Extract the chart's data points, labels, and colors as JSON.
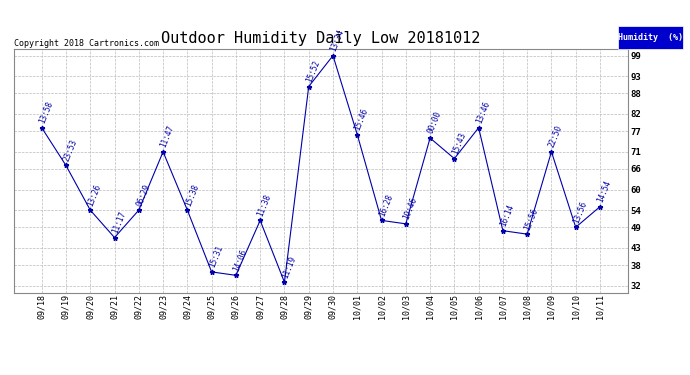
{
  "title": "Outdoor Humidity Daily Low 20181012",
  "copyright": "Copyright 2018 Cartronics.com",
  "legend_label": "Humidity  (%)",
  "x_labels": [
    "09/18",
    "09/19",
    "09/20",
    "09/21",
    "09/22",
    "09/23",
    "09/24",
    "09/25",
    "09/26",
    "09/27",
    "09/28",
    "09/29",
    "09/30",
    "10/01",
    "10/02",
    "10/03",
    "10/04",
    "10/05",
    "10/06",
    "10/07",
    "10/08",
    "10/09",
    "10/10",
    "10/11"
  ],
  "y_values": [
    78,
    67,
    54,
    46,
    54,
    71,
    54,
    36,
    35,
    51,
    33,
    90,
    99,
    76,
    51,
    50,
    75,
    69,
    78,
    48,
    47,
    71,
    49,
    55
  ],
  "point_labels": [
    "13:58",
    "23:53",
    "13:26",
    "11:17",
    "06:29",
    "11:47",
    "15:38",
    "15:31",
    "14:06",
    "11:38",
    "11:19",
    "15:52",
    "13:34",
    "15:46",
    "16:28",
    "10:46",
    "00:00",
    "15:43",
    "13:46",
    "16:14",
    "15:56",
    "22:50",
    "13:56",
    "14:54"
  ],
  "line_color": "#0000aa",
  "marker": "*",
  "bg_color": "#ffffff",
  "plot_bg_color": "#ffffff",
  "grid_color": "#bbbbbb",
  "yticks": [
    32,
    38,
    43,
    49,
    54,
    60,
    66,
    71,
    77,
    82,
    88,
    93,
    99
  ],
  "ylim": [
    30,
    101
  ],
  "title_fontsize": 11,
  "label_fontsize": 6.5,
  "legend_bg": "#0000cc",
  "legend_text_color": "#ffffff"
}
